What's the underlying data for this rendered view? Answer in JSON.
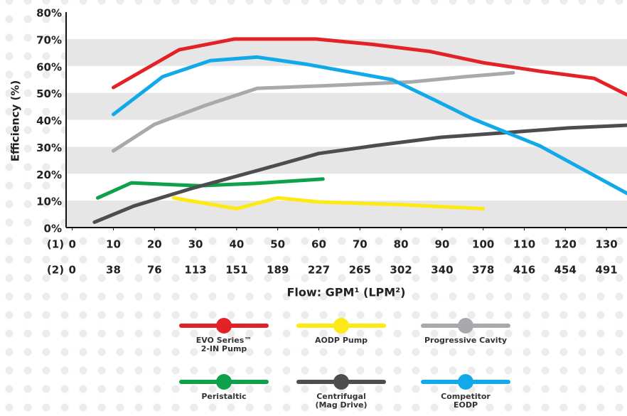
{
  "chart_data": {
    "type": "line",
    "y_label": "Efficiency (%)",
    "x_label": "Flow: GPM¹ (LPM²)",
    "row_labels": [
      "(1)",
      "(2)"
    ],
    "xlim": [
      -1.5,
      135
    ],
    "ylim": [
      0,
      80
    ],
    "xticks": [
      0,
      10,
      20,
      30,
      40,
      50,
      60,
      70,
      80,
      90,
      100,
      110,
      120,
      130
    ],
    "secondary_tick_labels": [
      "0",
      "38",
      "76",
      "113",
      "151",
      "189",
      "227",
      "265",
      "302",
      "340",
      "378",
      "416",
      "454",
      "491"
    ],
    "yticks": [
      {
        "value": 0,
        "label": "0%"
      },
      {
        "value": 10,
        "label": "10%"
      },
      {
        "value": 20,
        "label": "20%"
      },
      {
        "value": 30,
        "label": "30%"
      },
      {
        "value": 40,
        "label": "40%"
      },
      {
        "value": 50,
        "label": "50%"
      },
      {
        "value": 60,
        "label": "60%"
      },
      {
        "value": 70,
        "label": "70%"
      },
      {
        "value": 80,
        "label": "80%"
      }
    ],
    "band_color": "#e6e6e6",
    "series": [
      {
        "name": "EVO Series™\n2-IN Pump",
        "color": "#e32228",
        "x": [
          10,
          26,
          39.4,
          59.3,
          73,
          87,
          100,
          114,
          127,
          135
        ],
        "values": [
          52,
          66,
          70,
          70,
          68,
          65.4,
          61.2,
          58,
          55.4,
          49.3
        ]
      },
      {
        "name": "AODP Pump",
        "color": "#fdea14",
        "x": [
          24.7,
          40,
          50,
          60,
          80,
          100
        ],
        "values": [
          11,
          7,
          11,
          9.5,
          8.5,
          7
        ]
      },
      {
        "name": "Progressive Cavity",
        "color": "#a7a9ac",
        "x": [
          10,
          20,
          32.5,
          45,
          63.7,
          82.7,
          94.8,
          107.3
        ],
        "values": [
          28.5,
          38.3,
          45.4,
          51.7,
          52.8,
          54.1,
          55.9,
          57.5
        ]
      },
      {
        "name": "Peristaltic",
        "color": "#0ea14b",
        "x": [
          6.2,
          14.4,
          30.8,
          44.6,
          61
        ],
        "values": [
          11,
          16.6,
          15.5,
          16.4,
          18
        ]
      },
      {
        "name": "Centrifugal\n(Mag Drive)",
        "color": "#4d4d4f",
        "x": [
          5.4,
          15,
          29,
          44.6,
          60,
          74,
          89.6,
          107,
          120.8,
          135
        ],
        "values": [
          2,
          8,
          14.5,
          21,
          27.5,
          30.5,
          33.5,
          35.4,
          37,
          38
        ]
      },
      {
        "name": "Competitor\nEODP",
        "color": "#12a9e8",
        "x": [
          10,
          22,
          33.6,
          45,
          56.7,
          77.9,
          88,
          97.4,
          113.8,
          135
        ],
        "values": [
          42,
          56,
          62,
          63.3,
          60.7,
          54.9,
          47.5,
          40.4,
          30.3,
          12.7
        ]
      }
    ]
  }
}
